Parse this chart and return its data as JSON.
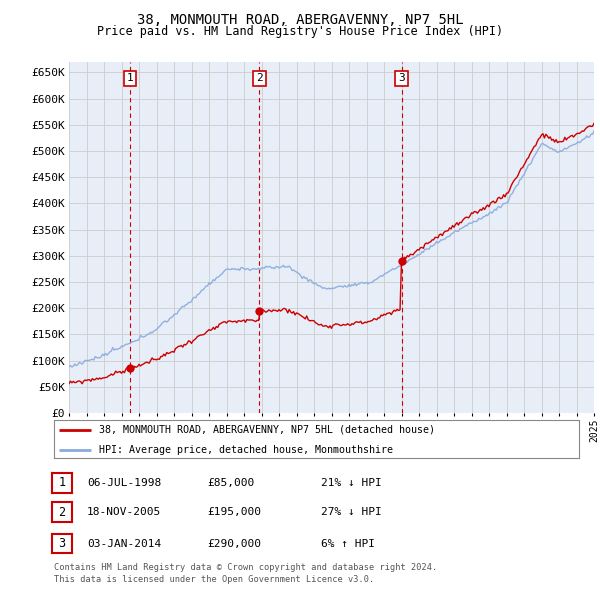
{
  "title": "38, MONMOUTH ROAD, ABERGAVENNY, NP7 5HL",
  "subtitle": "Price paid vs. HM Land Registry's House Price Index (HPI)",
  "ylim": [
    0,
    670000
  ],
  "yticks": [
    0,
    50000,
    100000,
    150000,
    200000,
    250000,
    300000,
    350000,
    400000,
    450000,
    500000,
    550000,
    600000,
    650000
  ],
  "xlim": [
    1995,
    2025
  ],
  "sale_dates": [
    "06-JUL-1998",
    "18-NOV-2005",
    "03-JAN-2014"
  ],
  "sale_prices": [
    85000,
    195000,
    290000
  ],
  "sale_times": [
    1998.5,
    2005.88,
    2014.0
  ],
  "sale_labels": [
    "1",
    "2",
    "3"
  ],
  "legend_property": "38, MONMOUTH ROAD, ABERGAVENNY, NP7 5HL (detached house)",
  "legend_hpi": "HPI: Average price, detached house, Monmouthshire",
  "footnote1": "Contains HM Land Registry data © Crown copyright and database right 2024.",
  "footnote2": "This data is licensed under the Open Government Licence v3.0.",
  "property_color": "#cc0000",
  "hpi_color": "#88aadd",
  "grid_color": "#cccccc",
  "chart_bg": "#e8eef8",
  "background_color": "#ffffff",
  "vline_color": "#cc0000",
  "table_rows": [
    [
      "1",
      "06-JUL-1998",
      "£85,000",
      "21% ↓ HPI"
    ],
    [
      "2",
      "18-NOV-2005",
      "£195,000",
      "27% ↓ HPI"
    ],
    [
      "3",
      "03-JAN-2014",
      "£290,000",
      "6% ↑ HPI"
    ]
  ]
}
